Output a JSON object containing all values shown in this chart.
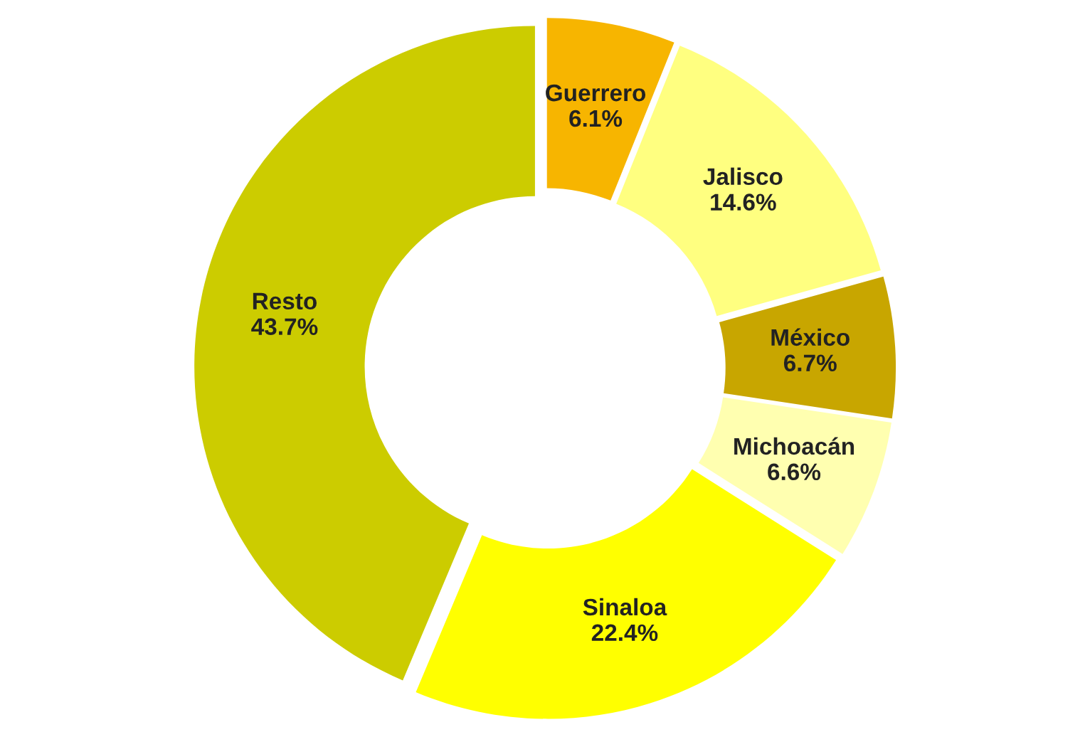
{
  "chart_data": {
    "type": "donut",
    "categories": [
      "Guerrero",
      "Jalisco",
      "México",
      "Michoacán",
      "Sinaloa",
      "Resto"
    ],
    "values": [
      6.1,
      14.6,
      6.7,
      6.6,
      22.4,
      43.7
    ],
    "value_labels": [
      "6.1%",
      "14.6%",
      "6.7%",
      "6.6%",
      "22.4%",
      "43.7%"
    ],
    "colors": [
      "#f7b500",
      "#ffff80",
      "#c8a600",
      "#ffffb0",
      "#ffff00",
      "#cccc00"
    ],
    "legend": false
  }
}
